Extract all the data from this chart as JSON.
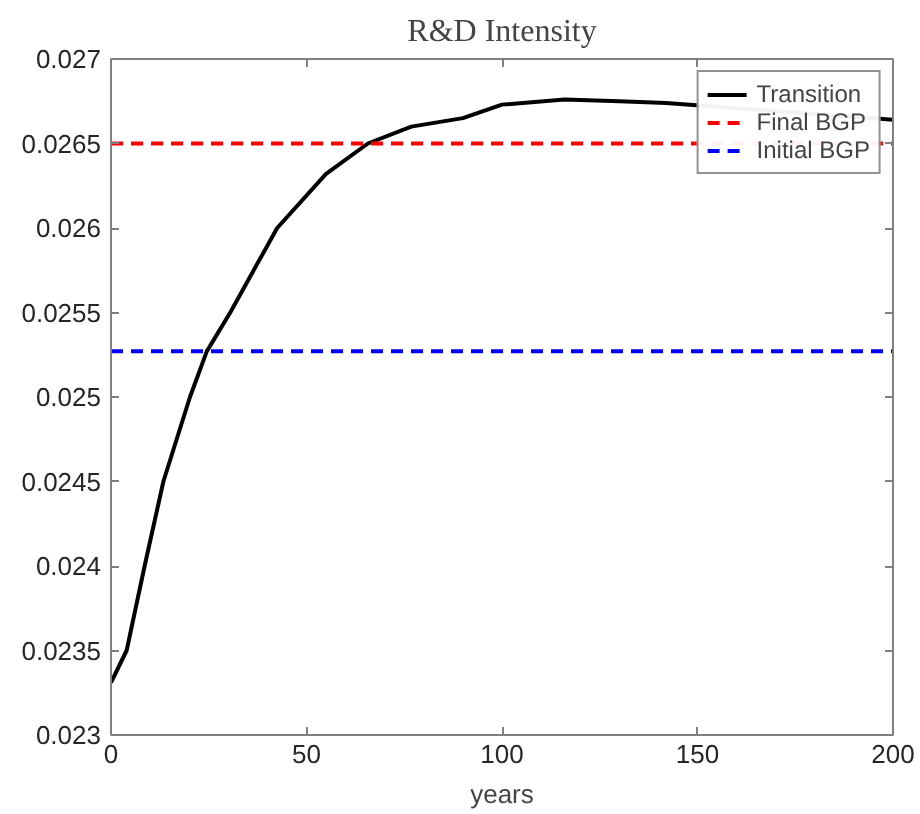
{
  "chart_data": {
    "type": "line",
    "title": "R&D Intensity",
    "xlabel": "years",
    "series": [
      {
        "name": "Transition",
        "color": "#000000",
        "line_style": "solid",
        "x": [
          0,
          4,
          8.6,
          13.4,
          20.2,
          24.5,
          30.5,
          42.5,
          55,
          65.7,
          76.8,
          90,
          100,
          116,
          130,
          142,
          200
        ],
        "values": [
          0.02331,
          0.0235,
          0.024,
          0.0245,
          0.025,
          0.02527,
          0.0255,
          0.026,
          0.02632,
          0.0265,
          0.0266,
          0.02665,
          0.02673,
          0.02676,
          0.02675,
          0.02674,
          0.02664
        ]
      },
      {
        "name": "Final BGP",
        "color": "#ff0000",
        "line_style": "dashed",
        "x": [
          0,
          200
        ],
        "values": [
          0.0265,
          0.0265
        ]
      },
      {
        "name": "Initial BGP",
        "color": "#0000ff",
        "line_style": "dashed",
        "x": [
          0,
          200
        ],
        "values": [
          0.02527,
          0.02527
        ]
      }
    ],
    "xlim": [
      0,
      200
    ],
    "xticks": [
      0,
      50,
      100,
      150,
      200
    ],
    "ylim": [
      0.023,
      0.027
    ],
    "yticks": [
      0.023,
      0.0235,
      0.024,
      0.0245,
      0.025,
      0.0255,
      0.026,
      0.0265,
      0.027
    ],
    "grid": false,
    "legend": "top right"
  }
}
